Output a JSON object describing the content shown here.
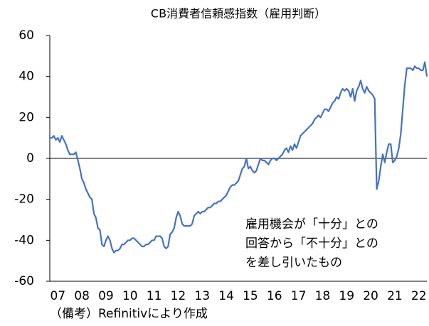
{
  "chart_data": {
    "type": "line",
    "title": "CB消費者信頼感指数（雇用判断）",
    "annotation": [
      "雇用機会が「十分」との",
      "回答から「不十分」との",
      "を差し引いたもの"
    ],
    "note": "（備考）Refinitivにより作成",
    "categories": [
      null,
      null,
      null,
      null,
      "07",
      null,
      null,
      null,
      null,
      null,
      null,
      null,
      null,
      null,
      null,
      null,
      "08",
      null,
      null,
      null,
      null,
      null,
      null,
      null,
      null,
      null,
      null,
      null,
      "09",
      null,
      null,
      null,
      null,
      null,
      null,
      null,
      null,
      null,
      null,
      null,
      "10",
      null,
      null,
      null,
      null,
      null,
      null,
      null,
      null,
      null,
      null,
      null,
      "11",
      null,
      null,
      null,
      null,
      null,
      null,
      null,
      null,
      null,
      null,
      null,
      "12",
      null,
      null,
      null,
      null,
      null,
      null,
      null,
      null,
      null,
      null,
      null,
      "13",
      null,
      null,
      null,
      null,
      null,
      null,
      null,
      null,
      null,
      null,
      null,
      "14",
      null,
      null,
      null,
      null,
      null,
      null,
      null,
      null,
      null,
      null,
      null,
      "15",
      null,
      null,
      null,
      null,
      null,
      null,
      null,
      null,
      null,
      null,
      null,
      "16",
      null,
      null,
      null,
      null,
      null,
      null,
      null,
      null,
      null,
      null,
      null,
      "17",
      null,
      null,
      null,
      null,
      null,
      null,
      null,
      null,
      null,
      null,
      null,
      "18",
      null,
      null,
      null,
      null,
      null,
      null,
      null,
      null,
      null,
      null,
      null,
      "19",
      null,
      null,
      null,
      null,
      null,
      null,
      null,
      null,
      null,
      null,
      null,
      "20",
      null,
      null,
      null,
      null,
      null,
      null,
      null,
      null,
      null,
      null,
      null,
      "21",
      null,
      null,
      null,
      null,
      null,
      null,
      null,
      null,
      null,
      null,
      null,
      "22",
      null,
      null,
      null,
      null
    ],
    "values": [
      10,
      10,
      11,
      9,
      10,
      8,
      11,
      9,
      7,
      4,
      2,
      2,
      2,
      3,
      -1,
      -5,
      -10,
      -12,
      -15,
      -17,
      -19,
      -20,
      -27,
      -29,
      -34,
      -35,
      -42,
      -43,
      -40,
      -38,
      -40,
      -44,
      -46,
      -45,
      -45,
      -44,
      -42,
      -42,
      -41,
      -40,
      -40,
      -39,
      -39,
      -40,
      -41,
      -42,
      -43,
      -43,
      -42,
      -42,
      -41,
      -40,
      -40,
      -38,
      -38,
      -38,
      -39,
      -43,
      -44,
      -43,
      -37,
      -36,
      -34,
      -29,
      -26,
      -28,
      -32,
      -33,
      -33,
      -33,
      -33,
      -32,
      -28,
      -27,
      -26,
      -27,
      -26,
      -26,
      -25,
      -24,
      -24,
      -23,
      -22,
      -22,
      -21,
      -21,
      -20,
      -19,
      -18,
      -16,
      -14,
      -13,
      -13,
      -12,
      -11,
      -8,
      -5,
      -4,
      0,
      -5,
      -4,
      -6,
      -7,
      -6,
      -3,
      0,
      -1,
      -1,
      -2,
      -3,
      -1,
      0,
      0,
      -1,
      0,
      1,
      2,
      4,
      5,
      3,
      6,
      4,
      7,
      5,
      8,
      11,
      12,
      13,
      14,
      15,
      16,
      17,
      19,
      20,
      21,
      20,
      22,
      24,
      24,
      23,
      25,
      27,
      28,
      30,
      29,
      32,
      34,
      33,
      34,
      33,
      30,
      34,
      28,
      33,
      35,
      38,
      34,
      32,
      35,
      33,
      32,
      31,
      29,
      -15,
      -11,
      -4,
      2,
      -2,
      3,
      7,
      7,
      -2,
      -1,
      1,
      5,
      12,
      24,
      36,
      44,
      44,
      44,
      43,
      45,
      44,
      44,
      43,
      43,
      47,
      40
    ],
    "color": "#4472c4",
    "ylim": [
      -60,
      60
    ],
    "yticks": [
      60,
      40,
      20,
      0,
      -20,
      -40,
      -60
    ],
    "grid": false
  }
}
